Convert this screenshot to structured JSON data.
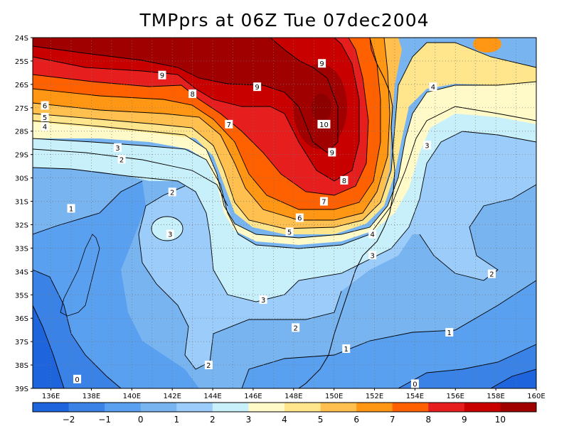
{
  "title": "TMPprs at 06Z Tue 07dec2004",
  "lat_labels": [
    "24S",
    "25S",
    "26S",
    "27S",
    "28S",
    "29S",
    "30S",
    "31S",
    "32S",
    "33S",
    "34S",
    "35S",
    "36S",
    "37S",
    "38S",
    "39S"
  ],
  "lon_labels": [
    "136E",
    "138E",
    "140E",
    "142E",
    "144E",
    "146E",
    "148E",
    "150E",
    "152E",
    "154E",
    "156E",
    "158E",
    "160E"
  ],
  "colorbar": {
    "colors": [
      "#1e64dc",
      "#3a82e6",
      "#5aa0f0",
      "#78b4f0",
      "#9ccdfa",
      "#c8f0fa",
      "#fffac8",
      "#ffe68c",
      "#ffc050",
      "#ff9614",
      "#ff6000",
      "#e61e1e",
      "#c80000",
      "#a00000"
    ],
    "tick_labels": [
      "-2",
      "-1",
      "0",
      "1",
      "2",
      "3",
      "4",
      "5",
      "6",
      "7",
      "8",
      "9",
      "10"
    ]
  },
  "contour_labels": [
    {
      "text": "9",
      "lon": 141.5,
      "lat": -25.6
    },
    {
      "text": "9",
      "lon": 146.2,
      "lat": -26.1
    },
    {
      "text": "9",
      "lon": 149.4,
      "lat": -25.1
    },
    {
      "text": "8",
      "lon": 143.0,
      "lat": -26.4
    },
    {
      "text": "7",
      "lon": 144.8,
      "lat": -27.7
    },
    {
      "text": "10",
      "lon": 149.5,
      "lat": -27.7
    },
    {
      "text": "9",
      "lon": 149.9,
      "lat": -28.9
    },
    {
      "text": "8",
      "lon": 150.5,
      "lat": -30.1
    },
    {
      "text": "7",
      "lon": 149.5,
      "lat": -31.0
    },
    {
      "text": "6",
      "lon": 148.3,
      "lat": -31.7
    },
    {
      "text": "5",
      "lon": 147.8,
      "lat": -32.3
    },
    {
      "text": "4",
      "lon": 151.9,
      "lat": -32.4
    },
    {
      "text": "3",
      "lon": 151.9,
      "lat": -33.3
    },
    {
      "text": "4",
      "lon": 154.9,
      "lat": -26.1
    },
    {
      "text": "3",
      "lon": 154.6,
      "lat": -28.6
    },
    {
      "text": "6",
      "lon": 135.7,
      "lat": -26.9
    },
    {
      "text": "5",
      "lon": 135.7,
      "lat": -27.4
    },
    {
      "text": "4",
      "lon": 135.7,
      "lat": -27.8
    },
    {
      "text": "3",
      "lon": 139.3,
      "lat": -28.7
    },
    {
      "text": "2",
      "lon": 139.5,
      "lat": -29.2
    },
    {
      "text": "2",
      "lon": 142.0,
      "lat": -30.6
    },
    {
      "text": "1",
      "lon": 137.0,
      "lat": -31.3
    },
    {
      "text": "3",
      "lon": 141.9,
      "lat": -32.4
    },
    {
      "text": "2",
      "lon": 157.8,
      "lat": -34.1
    },
    {
      "text": "3",
      "lon": 146.5,
      "lat": -35.2
    },
    {
      "text": "2",
      "lon": 148.1,
      "lat": -36.4
    },
    {
      "text": "1",
      "lon": 155.7,
      "lat": -36.6
    },
    {
      "text": "1",
      "lon": 150.6,
      "lat": -37.3
    },
    {
      "text": "2",
      "lon": 143.8,
      "lat": -38.0
    },
    {
      "text": "0",
      "lon": 137.3,
      "lat": -38.6
    },
    {
      "text": "0",
      "lon": 154.0,
      "lat": -38.8
    }
  ]
}
